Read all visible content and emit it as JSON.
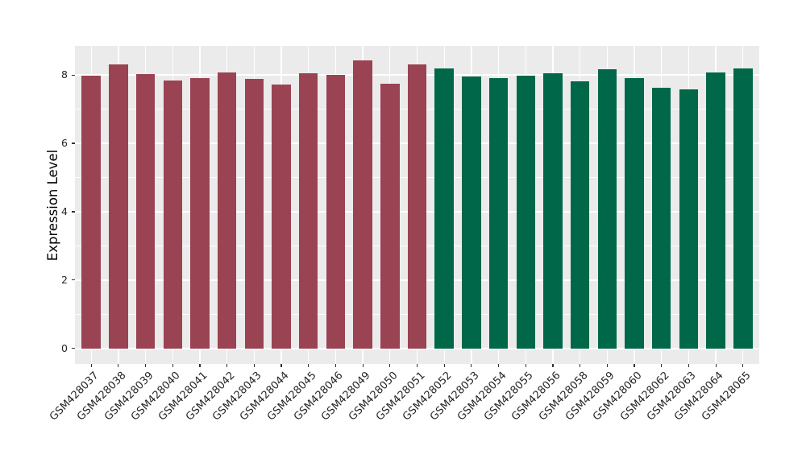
{
  "chart_data": {
    "type": "bar",
    "title": "",
    "xlabel": "",
    "ylabel": "Expression Level",
    "ylim": [
      -0.45,
      8.85
    ],
    "yticks": [
      0,
      2,
      4,
      6,
      8
    ],
    "yticks_minor": [
      1,
      3,
      5,
      7
    ],
    "grid": true,
    "legend_position": "none",
    "x_tick_angle": 45,
    "panel_background": "#ebebeb",
    "grid_color": "#ffffff",
    "tick_color": "#333333",
    "categories": [
      "GSM428037",
      "GSM428038",
      "GSM428039",
      "GSM428040",
      "GSM428041",
      "GSM428042",
      "GSM428043",
      "GSM428044",
      "GSM428045",
      "GSM428046",
      "GSM428049",
      "GSM428050",
      "GSM428051",
      "GSM428052",
      "GSM428053",
      "GSM428054",
      "GSM428055",
      "GSM428056",
      "GSM428058",
      "GSM428059",
      "GSM428060",
      "GSM428062",
      "GSM428063",
      "GSM428064",
      "GSM428065"
    ],
    "values": [
      7.98,
      8.31,
      8.03,
      7.85,
      7.92,
      8.08,
      7.89,
      7.72,
      8.04,
      8.0,
      8.43,
      7.75,
      8.32,
      8.19,
      7.96,
      7.9,
      7.97,
      8.04,
      7.82,
      8.16,
      7.9,
      7.63,
      7.57,
      8.08,
      8.2
    ],
    "groups": [
      "group1",
      "group1",
      "group1",
      "group1",
      "group1",
      "group1",
      "group1",
      "group1",
      "group1",
      "group1",
      "group1",
      "group1",
      "group1",
      "group2",
      "group2",
      "group2",
      "group2",
      "group2",
      "group2",
      "group2",
      "group2",
      "group2",
      "group2",
      "group2",
      "group2"
    ],
    "group_colors": {
      "group1": "#9a4352",
      "group2": "#006849"
    }
  }
}
